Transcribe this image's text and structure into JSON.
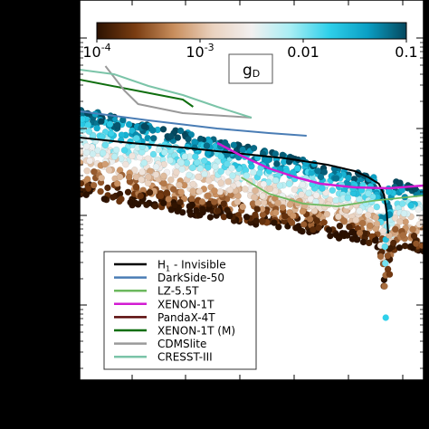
{
  "chart_data": {
    "type": "scatter",
    "title": "",
    "xlabel": "",
    "ylabel": "",
    "scale": {
      "x": "log",
      "y": "log"
    },
    "colorbar": {
      "label": "g_D",
      "label_main": "g",
      "label_sub": "D",
      "scale": "log",
      "range": [
        0.0001,
        0.1
      ],
      "ticks": [
        {
          "base": "10",
          "exp": "-4",
          "value": 0.0001
        },
        {
          "base": "10",
          "exp": "-3",
          "value": 0.001
        },
        {
          "base": "",
          "exp": "",
          "text": "0.01",
          "value": 0.01
        },
        {
          "base": "",
          "exp": "",
          "text": "0.1",
          "value": 0.1
        }
      ],
      "colors": [
        "#2b1100",
        "#7a3d12",
        "#c98f5e",
        "#ead2bf",
        "#f2f0f0",
        "#a8eef4",
        "#2fd0ea",
        "#0a9fc4",
        "#05485e"
      ]
    },
    "legend": {
      "placement": "lower-left",
      "entries": [
        {
          "label_main": "H",
          "label_sub": "1",
          "label_rest": " - Invisible",
          "color": "#000000"
        },
        {
          "label": "DarkSide-50",
          "color": "#4a7db5"
        },
        {
          "label": "LZ-5.5T",
          "color": "#6cb85e"
        },
        {
          "label": "XENON-1T",
          "color": "#d21bd2"
        },
        {
          "label": "PandaX-4T",
          "color": "#5a0a0a"
        },
        {
          "label": "XENON-1T (M)",
          "color": "#0f6e0f"
        },
        {
          "label": "CDMSlite",
          "color": "#9a9a9a"
        },
        {
          "label": "CRESST-III",
          "color": "#7bc4a8"
        }
      ]
    },
    "series": [
      {
        "name": "H1 - Invisible",
        "color": "#000000",
        "width": 2,
        "points": [
          [
            0,
            152
          ],
          [
            0.15,
            158
          ],
          [
            0.3,
            163
          ],
          [
            0.45,
            169
          ],
          [
            0.6,
            175
          ],
          [
            0.72,
            182
          ],
          [
            0.8,
            189
          ],
          [
            0.84,
            196
          ],
          [
            0.87,
            203
          ],
          [
            0.885,
            215
          ],
          [
            0.893,
            235
          ],
          [
            0.897,
            258
          ]
        ]
      },
      {
        "name": "DarkSide-50",
        "color": "#4a7db5",
        "width": 2,
        "points": [
          [
            0,
            123
          ],
          [
            0.2,
            133
          ],
          [
            0.4,
            142
          ],
          [
            0.55,
            147
          ],
          [
            0.66,
            150
          ]
        ]
      },
      {
        "name": "LZ-5.5T",
        "color": "#6cb85e",
        "width": 1.8,
        "points": [
          [
            0.47,
            196
          ],
          [
            0.55,
            214
          ],
          [
            0.65,
            225
          ],
          [
            0.75,
            228
          ],
          [
            0.85,
            222
          ],
          [
            1.0,
            216
          ]
        ]
      },
      {
        "name": "XENON-1T",
        "color": "#d21bd2",
        "width": 2.5,
        "points": [
          [
            0.4,
            158
          ],
          [
            0.47,
            172
          ],
          [
            0.55,
            186
          ],
          [
            0.63,
            196
          ],
          [
            0.7,
            203
          ],
          [
            0.8,
            207
          ],
          [
            0.9,
            208
          ],
          [
            1.0,
            205
          ]
        ]
      },
      {
        "name": "XENON-1T (M)",
        "color": "#0f6e0f",
        "width": 2,
        "points": [
          [
            0,
            88
          ],
          [
            0.15,
            99
          ],
          [
            0.3,
            110
          ],
          [
            0.33,
            118
          ]
        ]
      },
      {
        "name": "CDMSlite",
        "color": "#9a9a9a",
        "width": 2,
        "points": [
          [
            0.075,
            73
          ],
          [
            0.13,
            100
          ],
          [
            0.17,
            115
          ],
          [
            0.3,
            125
          ],
          [
            0.5,
            130
          ]
        ]
      },
      {
        "name": "CRESST-III",
        "color": "#7bc4a8",
        "width": 2,
        "points": [
          [
            0,
            77
          ],
          [
            0.1,
            82
          ],
          [
            0.2,
            95
          ],
          [
            0.3,
            105
          ],
          [
            0.4,
            118
          ],
          [
            0.5,
            130
          ]
        ]
      }
    ]
  }
}
